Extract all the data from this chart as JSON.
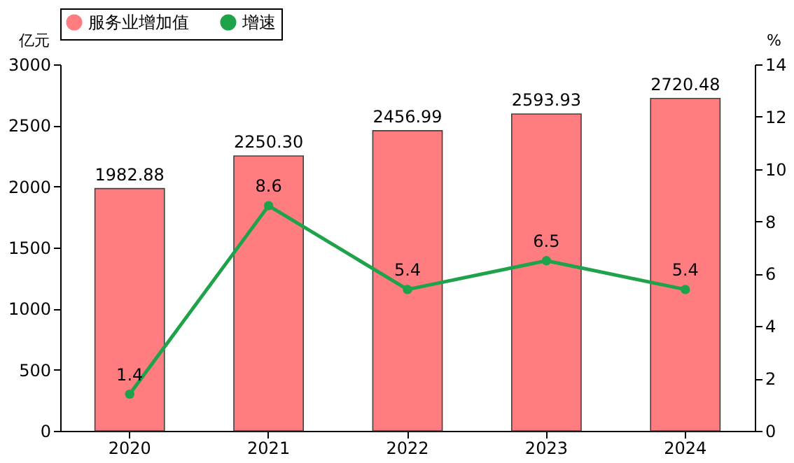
{
  "chart_data": {
    "type": "bar",
    "categories": [
      "2020",
      "2021",
      "2022",
      "2023",
      "2024"
    ],
    "ylabel": "亿元",
    "y2label": "%",
    "ylim": [
      0,
      3000
    ],
    "yticks": [
      0,
      500,
      1000,
      1500,
      2000,
      2500,
      3000
    ],
    "y2lim": [
      0,
      14
    ],
    "y2ticks": [
      0,
      2,
      4,
      6,
      8,
      10,
      12,
      14
    ],
    "legend": "top",
    "grid": false,
    "marker": "circle",
    "line_style": "solid",
    "series": [
      {
        "name": "服务业增加值",
        "color": "#ff7c80",
        "values": [
          1982.88,
          2250.3,
          2456.99,
          2593.93,
          2720.48
        ],
        "value_labels": [
          "1982.88",
          "2250.30",
          "2456.99",
          "2593.93",
          "2720.48"
        ]
      },
      {
        "name": "增速",
        "type": "line",
        "axis": "y2",
        "color": "#1fa34a",
        "values": [
          1.4,
          8.6,
          5.4,
          6.5,
          5.4
        ],
        "value_labels": [
          "1.4",
          "8.6",
          "5.4",
          "6.5",
          "5.4"
        ]
      }
    ]
  }
}
